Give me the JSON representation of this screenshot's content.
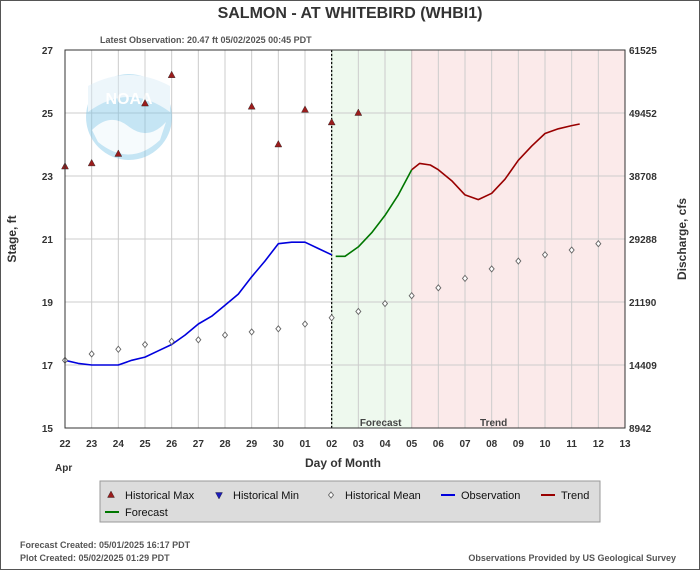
{
  "chart_data": {
    "type": "line",
    "title": "SALMON - AT WHITEBIRD  (WHBI1)",
    "subtitle": "Latest Observation: 20.47 ft 05/02/2025 00:45 PDT",
    "xlabel": "Day of Month",
    "ylabel": "Stage, ft",
    "y2label": "Discharge, cfs",
    "month_label": "Apr",
    "x_ticks": [
      "22",
      "23",
      "24",
      "25",
      "26",
      "27",
      "28",
      "29",
      "30",
      "01",
      "02",
      "03",
      "04",
      "05",
      "06",
      "07",
      "08",
      "09",
      "10",
      "11",
      "12",
      "13"
    ],
    "xlim": [
      0,
      21
    ],
    "ylim": [
      15,
      27
    ],
    "y_ticks": [
      15,
      17,
      19,
      21,
      23,
      25,
      27
    ],
    "y2_ticks": [
      "8942",
      "14409",
      "21190",
      "29288",
      "38708",
      "49452",
      "61525"
    ],
    "grid": true,
    "regions": {
      "forecast_start": 10,
      "forecast_end": 13,
      "forecast_label": "Forecast",
      "trend_label": "Trend",
      "forecast_color": "#eef9ee",
      "trend_color": "#fbeaea"
    },
    "latest_observation_x": 10,
    "series": [
      {
        "name": "Historical Max",
        "style": "triangle-up",
        "color": "#9b1c1c",
        "points": [
          [
            0,
            23.3
          ],
          [
            1,
            23.4
          ],
          [
            2,
            23.7
          ],
          [
            3,
            25.3
          ],
          [
            4,
            26.2
          ],
          [
            7,
            25.2
          ],
          [
            8,
            24.0
          ],
          [
            9,
            25.1
          ],
          [
            10,
            24.7
          ],
          [
            11,
            25.0
          ]
        ]
      },
      {
        "name": "Historical Min",
        "style": "triangle-down",
        "color": "#1c1cbb",
        "points": []
      },
      {
        "name": "Historical Mean",
        "style": "diamond",
        "color": "#666666",
        "points": [
          [
            0,
            17.15
          ],
          [
            1,
            17.35
          ],
          [
            2,
            17.5
          ],
          [
            3,
            17.65
          ],
          [
            4,
            17.75
          ],
          [
            5,
            17.8
          ],
          [
            6,
            17.95
          ],
          [
            7,
            18.05
          ],
          [
            8,
            18.15
          ],
          [
            9,
            18.3
          ],
          [
            10,
            18.5
          ],
          [
            11,
            18.7
          ],
          [
            12,
            18.95
          ],
          [
            13,
            19.2
          ],
          [
            14,
            19.45
          ],
          [
            15,
            19.75
          ],
          [
            16,
            20.05
          ],
          [
            17,
            20.3
          ],
          [
            18,
            20.5
          ],
          [
            19,
            20.65
          ],
          [
            20,
            20.85
          ]
        ]
      },
      {
        "name": "Observation",
        "style": "line",
        "color": "#0000dd",
        "points": [
          [
            0,
            17.15
          ],
          [
            0.5,
            17.05
          ],
          [
            1,
            17.0
          ],
          [
            1.5,
            17.0
          ],
          [
            2,
            17.0
          ],
          [
            2.5,
            17.15
          ],
          [
            3,
            17.25
          ],
          [
            3.5,
            17.45
          ],
          [
            4,
            17.65
          ],
          [
            4.5,
            17.95
          ],
          [
            5,
            18.3
          ],
          [
            5.5,
            18.55
          ],
          [
            6,
            18.9
          ],
          [
            6.5,
            19.25
          ],
          [
            7,
            19.8
          ],
          [
            7.5,
            20.3
          ],
          [
            8,
            20.85
          ],
          [
            8.5,
            20.9
          ],
          [
            9,
            20.9
          ],
          [
            9.5,
            20.7
          ],
          [
            10,
            20.5
          ]
        ]
      },
      {
        "name": "Forecast",
        "style": "line",
        "color": "#007700",
        "points": [
          [
            10.15,
            20.45
          ],
          [
            10.5,
            20.45
          ],
          [
            11,
            20.75
          ],
          [
            11.5,
            21.2
          ],
          [
            12,
            21.75
          ],
          [
            12.5,
            22.4
          ],
          [
            13,
            23.2
          ]
        ]
      },
      {
        "name": "Trend",
        "style": "line",
        "color": "#990000",
        "points": [
          [
            13,
            23.2
          ],
          [
            13.3,
            23.4
          ],
          [
            13.7,
            23.35
          ],
          [
            14,
            23.2
          ],
          [
            14.5,
            22.85
          ],
          [
            15,
            22.4
          ],
          [
            15.5,
            22.25
          ],
          [
            16,
            22.45
          ],
          [
            16.5,
            22.9
          ],
          [
            17,
            23.5
          ],
          [
            17.5,
            23.95
          ],
          [
            18,
            24.35
          ],
          [
            18.5,
            24.5
          ],
          [
            19,
            24.6
          ],
          [
            19.3,
            24.65
          ]
        ]
      }
    ],
    "legend": [
      "Historical Max",
      "Historical Min",
      "Historical Mean",
      "Observation",
      "Trend",
      "Forecast"
    ],
    "legend_position": "bottom"
  },
  "logo": {
    "text": "NOAA"
  },
  "footer": {
    "forecast_created": "Forecast Created: 05/01/2025 16:17 PDT",
    "plot_created": "Plot Created: 05/02/2025 01:29 PDT",
    "credit": "Observations Provided by US Geological Survey"
  }
}
